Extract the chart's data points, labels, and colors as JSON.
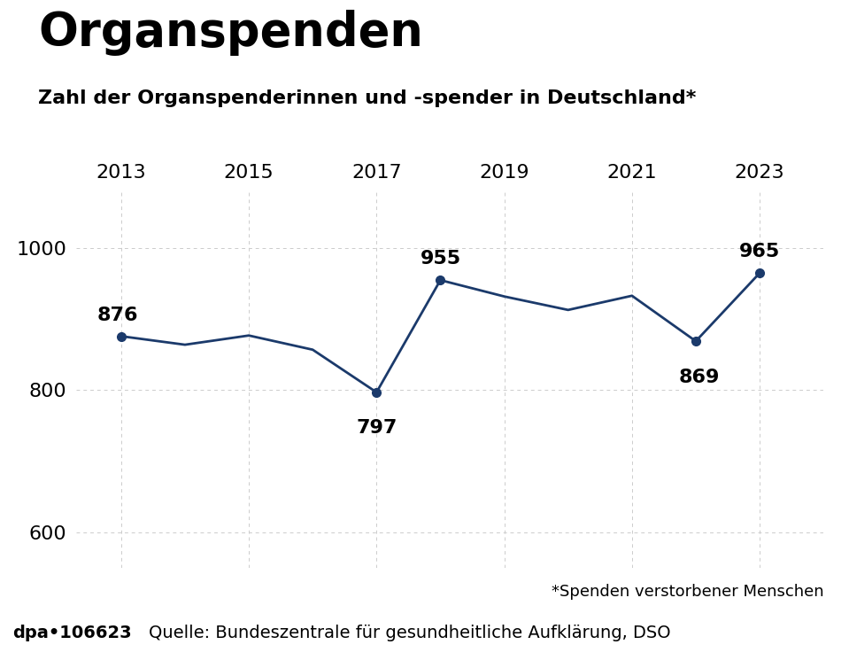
{
  "title": "Organspenden",
  "subtitle": "Zahl der Organspenderinnen und -spender in Deutschland*",
  "years": [
    2013,
    2014,
    2015,
    2016,
    2017,
    2018,
    2019,
    2020,
    2021,
    2022,
    2023
  ],
  "values": [
    876,
    864,
    877,
    857,
    797,
    955,
    932,
    913,
    933,
    869,
    965
  ],
  "labeled_points": {
    "2013": 876,
    "2017": 797,
    "2018": 955,
    "2022": 869,
    "2023": 965
  },
  "line_color": "#1b3a6b",
  "marker_color": "#1b3a6b",
  "background_color": "#ffffff",
  "grid_color": "#cccccc",
  "ylim": [
    550,
    1080
  ],
  "yticks": [
    600,
    800,
    1000
  ],
  "xticks": [
    2013,
    2015,
    2017,
    2019,
    2021,
    2023
  ],
  "footnote": "*Spenden verstorbener Menschen",
  "source": "Quelle: Bundeszentrale für gesundheitliche Aufklärung, DSO",
  "dpa_label": "dpa•106623",
  "footer_bg": "#d8d8d8",
  "title_fontsize": 38,
  "subtitle_fontsize": 16,
  "axis_tick_fontsize": 16,
  "label_fontsize": 16,
  "footer_fontsize": 14,
  "footnote_fontsize": 13
}
